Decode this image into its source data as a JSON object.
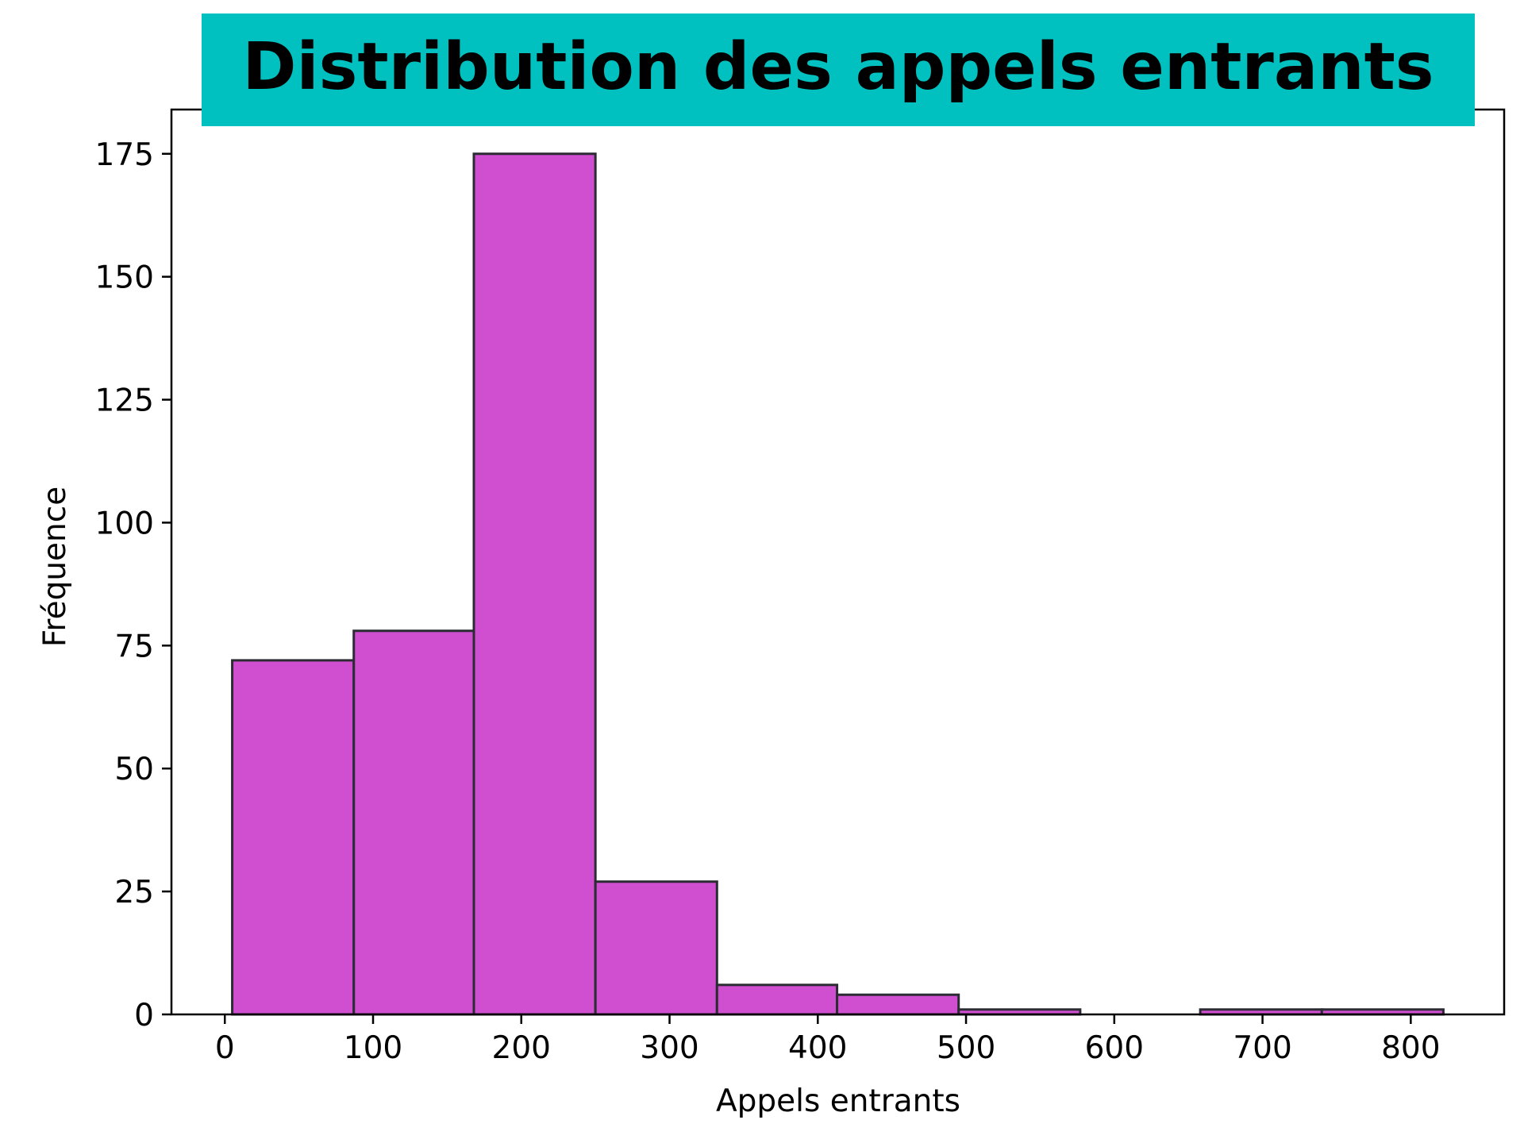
{
  "chart_data": {
    "type": "bar",
    "title": "Distribution des appels entrants",
    "xlabel": "Appels entrants",
    "ylabel": "Fréquence",
    "bins": [
      {
        "start": 5,
        "end": 87,
        "count": 72
      },
      {
        "start": 87,
        "end": 168,
        "count": 78
      },
      {
        "start": 168,
        "end": 250,
        "count": 175
      },
      {
        "start": 250,
        "end": 332,
        "count": 27
      },
      {
        "start": 332,
        "end": 413,
        "count": 6
      },
      {
        "start": 413,
        "end": 495,
        "count": 4
      },
      {
        "start": 495,
        "end": 577,
        "count": 1
      },
      {
        "start": 577,
        "end": 658,
        "count": 0
      },
      {
        "start": 658,
        "end": 740,
        "count": 1
      },
      {
        "start": 740,
        "end": 822,
        "count": 1
      }
    ],
    "xlim": [
      -36,
      863
    ],
    "ylim": [
      0,
      184
    ],
    "x_ticks": [
      0,
      100,
      200,
      300,
      400,
      500,
      600,
      700,
      800
    ],
    "y_ticks": [
      0,
      25,
      50,
      75,
      100,
      125,
      150,
      175
    ],
    "bar_color": "#d04ed0",
    "edge_color": "#2b2b33",
    "title_bg_color": "#00c0c0",
    "grid": false
  }
}
